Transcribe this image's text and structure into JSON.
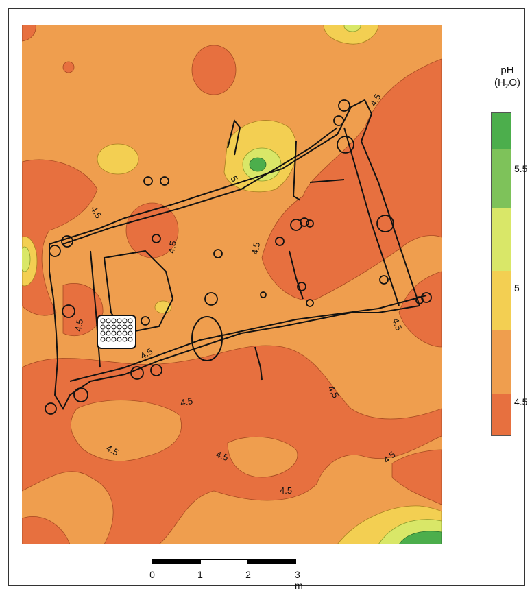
{
  "legend": {
    "title_line1": "pH",
    "title_line2_pre": "(H",
    "title_line2_sub": "2",
    "title_line2_post": "O)",
    "tick_labels": [
      "5.5",
      "5",
      "4.5"
    ],
    "class_colors": [
      "#4cae4c",
      "#7ec25a",
      "#d9e768",
      "#f3cf52",
      "#ef9e4e",
      "#e7703f"
    ]
  },
  "map": {
    "contour_labels": [
      "4.5",
      "4.5",
      "5",
      "4.5",
      "4.5",
      "4.5",
      "4.5",
      "4.5",
      "4.5",
      "4.5",
      "4.5",
      "4.5",
      "4.5",
      "4.5"
    ],
    "colors": {
      "low": "#e7703f",
      "mid": "#ef9e4e",
      "highmid": "#f3cf52",
      "high": "#d9e768",
      "higher": "#7ec25a",
      "highest": "#4cae4c",
      "outline": "#111111"
    }
  },
  "scale": {
    "labels": [
      "0",
      "1",
      "2",
      "3 m"
    ]
  }
}
